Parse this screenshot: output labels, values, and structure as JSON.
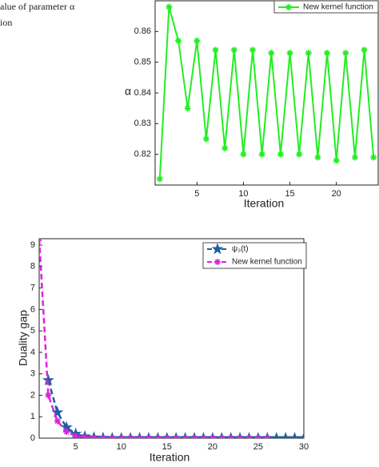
{
  "caption_lines": [
    "alue of parameter α",
    "ion"
  ],
  "chart_data": [
    {
      "type": "line",
      "xlabel": "Iteration",
      "ylabel": "α",
      "xlim": [
        0.5,
        24.5
      ],
      "xticks": [
        5,
        10,
        15,
        20
      ],
      "ylim": [
        0.81,
        0.87
      ],
      "yticks": [
        0.82,
        0.83,
        0.84,
        0.85,
        0.86
      ],
      "legend": "upper right",
      "series": [
        {
          "name": "New kernel function",
          "color": "#22ee22",
          "marker": "asterisk",
          "dashed": false,
          "x": [
            1,
            2,
            3,
            4,
            5,
            6,
            7,
            8,
            9,
            10,
            11,
            12,
            13,
            14,
            15,
            16,
            17,
            18,
            19,
            20,
            21,
            22,
            23,
            24
          ],
          "values": [
            0.812,
            0.868,
            0.857,
            0.835,
            0.857,
            0.825,
            0.854,
            0.822,
            0.854,
            0.82,
            0.854,
            0.82,
            0.853,
            0.82,
            0.853,
            0.82,
            0.853,
            0.819,
            0.853,
            0.818,
            0.853,
            0.819,
            0.854,
            0.819
          ]
        }
      ]
    },
    {
      "type": "line",
      "xlabel": "Iteration",
      "ylabel": "Duality gap",
      "xlim": [
        1,
        30
      ],
      "xticks": [
        5,
        10,
        15,
        20,
        25,
        30
      ],
      "ylim": [
        0,
        9.3
      ],
      "yticks": [
        0,
        1,
        2,
        3,
        4,
        5,
        6,
        7,
        8,
        9
      ],
      "legend": "upper right",
      "series": [
        {
          "name": "ψ₃(t)",
          "color": "#1f5fa0",
          "marker": "star",
          "dashed": true,
          "x": [
            2,
            3,
            4,
            5,
            6,
            7,
            8,
            9,
            10,
            11,
            12,
            13,
            14,
            15,
            16,
            17,
            18,
            19,
            20,
            21,
            22,
            23,
            24,
            25,
            26,
            27,
            28,
            29,
            30
          ],
          "values": [
            2.7,
            1.2,
            0.5,
            0.2,
            0.08,
            0.03,
            0.01,
            0,
            0,
            0,
            0,
            0,
            0,
            0,
            0,
            0,
            0,
            0,
            0,
            0,
            0,
            0,
            0,
            0,
            0,
            0,
            0,
            0,
            0
          ]
        },
        {
          "name": "New kernel function",
          "color": "#e020e0",
          "marker": "asterisk",
          "dashed": true,
          "x": [
            1,
            2,
            3,
            4,
            5,
            6,
            7,
            8,
            9,
            10,
            11,
            12,
            13,
            14,
            15,
            16,
            17,
            18,
            19,
            20,
            21,
            22,
            23,
            24,
            25,
            26
          ],
          "values": [
            9.3,
            2.0,
            0.8,
            0.3,
            0.1,
            0.04,
            0.01,
            0,
            0,
            0,
            0,
            0,
            0,
            0,
            0,
            0,
            0,
            0,
            0,
            0,
            0,
            0,
            0,
            0,
            0,
            0
          ]
        }
      ]
    }
  ]
}
